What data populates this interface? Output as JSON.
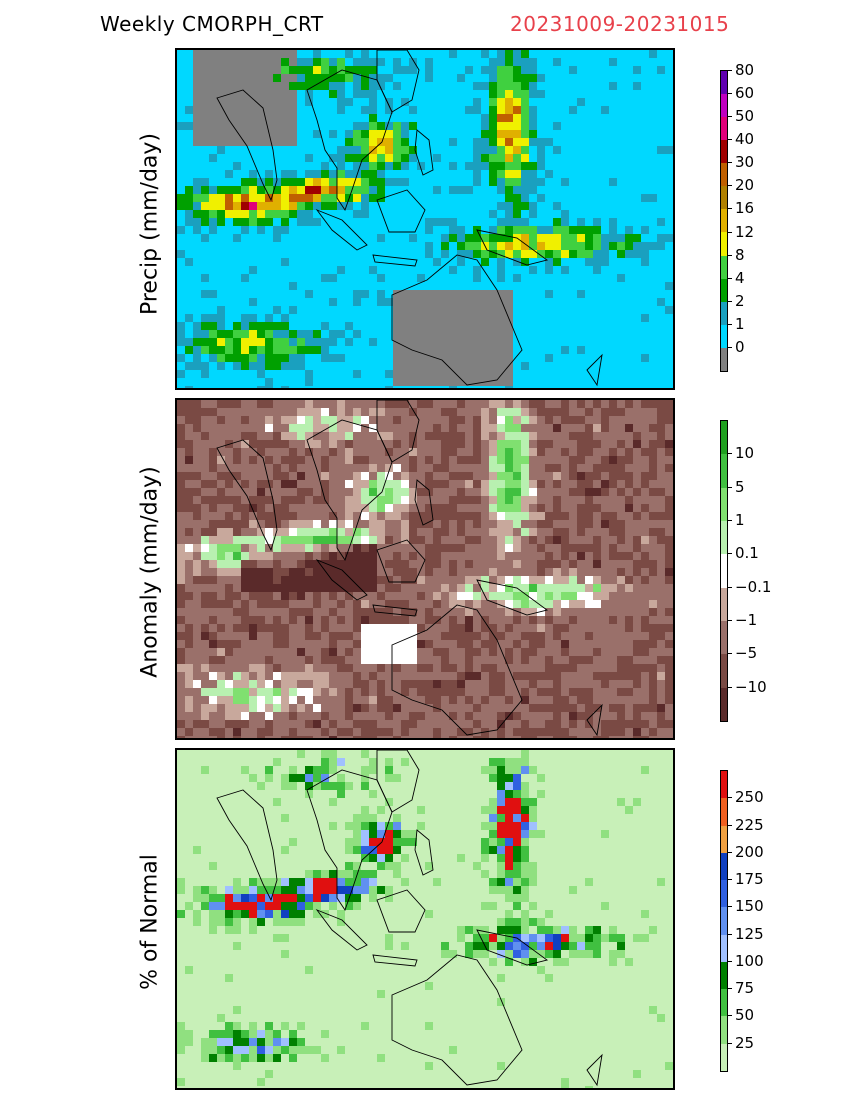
{
  "header": {
    "title": "Weekly CMORPH_CRT",
    "date_range": "20231009-20231015"
  },
  "panels": [
    {
      "ylabel": "Precip (mm/day)",
      "colorbar": {
        "colors": [
          "#808080",
          "#00d8ff",
          "#1aa0bf",
          "#00a000",
          "#40d040",
          "#f0f000",
          "#e0b000",
          "#b08000",
          "#c06000",
          "#a00000",
          "#e0007a",
          "#c000c0",
          "#6000b0"
        ],
        "labels": [
          "0",
          "1",
          "2",
          "4",
          "8",
          "12",
          "16",
          "20",
          "30",
          "40",
          "50",
          "60",
          "80"
        ]
      }
    },
    {
      "ylabel": "Anomaly (mm/day)",
      "colorbar": {
        "colors": [
          "#5a2a2a",
          "#7a4a44",
          "#9a706a",
          "#c8a89c",
          "#ffffff",
          "#b8f0b0",
          "#80e070",
          "#40c040",
          "#20a020"
        ],
        "labels": [
          "-10",
          "-5",
          "-1",
          "-0.1",
          "0.1",
          "1",
          "5",
          "10"
        ]
      }
    },
    {
      "ylabel": "% of Normal",
      "colorbar": {
        "colors": [
          "#c8f0b8",
          "#90e080",
          "#40c040",
          "#008000",
          "#a0c0ff",
          "#6090f0",
          "#3060e0",
          "#1040c0",
          "#f0a040",
          "#f06020",
          "#e01010"
        ],
        "labels": [
          "25",
          "50",
          "75",
          "100",
          "125",
          "150",
          "175",
          "200",
          "225",
          "250"
        ]
      }
    }
  ]
}
